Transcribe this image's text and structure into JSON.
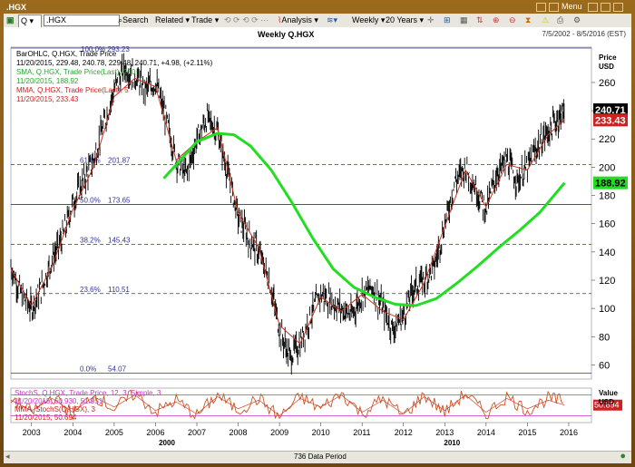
{
  "window": {
    "title": ".HGX",
    "menu_label": "Menu"
  },
  "toolbar": {
    "symbol_type": "Q",
    "symbol_value": ".HGX",
    "search_label": "Search",
    "related_label": "Related",
    "trade_label": "Trade",
    "analysis_label": "Analysis",
    "period_label": "Weekly",
    "range_label": "20 Years"
  },
  "header": {
    "title": "Weekly Q.HGX",
    "date_range": "7/5/2002 - 8/5/2016 (EST)"
  },
  "status": {
    "period_text": "736 Data Period"
  },
  "colors": {
    "price": "#000000",
    "sma": "#22dd22",
    "mma": "#cc3322",
    "stoch": "#cc5522",
    "stoch_mma": "#cc3322",
    "fib_line": "#333399",
    "stoch_bound": "#cc33cc",
    "current_price_bg": "#000000",
    "sma_tag_bg": "#22dd22",
    "mma_tag_bg": "#cc2222"
  },
  "chart_data": [
    {
      "type": "line",
      "subtype": "ohlc_bar",
      "title": "Weekly Q.HGX",
      "legend": [
        {
          "text": "BarOHLC, Q.HGX, Trade Price",
          "color": "#000000"
        },
        {
          "text": "11/20/2015, 229.48, 240.78, 229.48, 240.71, +4.98, (+2.11%)",
          "color": "#000000"
        },
        {
          "text": "SMA, Q.HGX, Trade Price(Last), 200",
          "color": "#22aa22"
        },
        {
          "text": "11/20/2015, 188.92",
          "color": "#22aa22"
        },
        {
          "text": "MMA, Q.HGX, Trade Price(Last), 5",
          "color": "#cc2222"
        },
        {
          "text": "11/20/2015, 233.43",
          "color": "#cc2222"
        }
      ],
      "ylabel": "Price\nUSD",
      "y_axis_title": [
        "Price",
        "USD"
      ],
      "ylim": [
        50,
        285
      ],
      "yticks": [
        "260",
        "240",
        "220",
        "200",
        "180",
        "160",
        "140",
        "120",
        "100",
        "80",
        "60"
      ],
      "x_tick_labels": [
        "2003",
        "2004",
        "2005",
        "2006",
        "2007",
        "2008",
        "2009",
        "2010",
        "2011",
        "2012",
        "2013",
        "2014",
        "2015",
        "2016"
      ],
      "x_decade_labels": [
        "2000",
        "2010"
      ],
      "fib_levels": [
        {
          "label": "61.8%",
          "value": 201.87,
          "text": "201.87"
        },
        {
          "label": "50.0%",
          "value": 173.65,
          "text": "173.65"
        },
        {
          "label": "38.2%",
          "value": 145.43,
          "text": "145.43"
        },
        {
          "label": "23.6%",
          "value": 110.51,
          "text": "110.51"
        },
        {
          "label": "0.0%",
          "value": 54.07,
          "text": "54.07"
        }
      ],
      "fib_top_text": "100.0%  293.23",
      "price_tags": [
        {
          "text": "240.71",
          "value": 240.71
        },
        {
          "text": "233.43",
          "value": 233.43
        },
        {
          "text": "188.92",
          "value": 188.92
        }
      ],
      "series": [
        {
          "name": "BarOHLC, Q.HGX, Trade Price",
          "x": [
            2002.5,
            2002.75,
            2003.0,
            2003.25,
            2003.5,
            2003.75,
            2004.0,
            2004.25,
            2004.5,
            2004.75,
            2005.0,
            2005.25,
            2005.5,
            2005.75,
            2006.0,
            2006.25,
            2006.5,
            2006.75,
            2007.0,
            2007.25,
            2007.5,
            2007.75,
            2008.0,
            2008.25,
            2008.5,
            2008.75,
            2009.0,
            2009.25,
            2009.5,
            2009.75,
            2010.0,
            2010.25,
            2010.5,
            2010.75,
            2011.0,
            2011.25,
            2011.5,
            2011.75,
            2012.0,
            2012.25,
            2012.5,
            2012.75,
            2013.0,
            2013.25,
            2013.5,
            2013.75,
            2014.0,
            2014.25,
            2014.5,
            2014.75,
            2015.0,
            2015.25,
            2015.5,
            2015.75,
            2015.9
          ],
          "values": [
            130,
            110,
            100,
            115,
            135,
            150,
            175,
            190,
            205,
            230,
            255,
            270,
            265,
            255,
            260,
            235,
            205,
            195,
            220,
            235,
            225,
            195,
            165,
            150,
            140,
            120,
            85,
            65,
            75,
            95,
            110,
            105,
            100,
            95,
            110,
            115,
            100,
            85,
            95,
            115,
            120,
            130,
            160,
            190,
            200,
            185,
            170,
            195,
            205,
            190,
            200,
            215,
            225,
            235,
            240.71
          ]
        },
        {
          "name": "SMA, Q.HGX, Trade Price(Last), 200",
          "x": [
            2006.2,
            2006.6,
            2007.0,
            2007.5,
            2007.9,
            2008.3,
            2008.8,
            2009.3,
            2009.8,
            2010.3,
            2010.8,
            2011.3,
            2011.8,
            2012.3,
            2012.8,
            2013.3,
            2013.8,
            2014.3,
            2014.8,
            2015.3,
            2015.9
          ],
          "values": [
            192,
            205,
            218,
            224,
            223,
            215,
            198,
            175,
            150,
            128,
            115,
            108,
            103,
            102,
            107,
            118,
            130,
            143,
            155,
            168,
            188.92
          ]
        },
        {
          "name": "MMA, Q.HGX, Trade Price(Last), 5",
          "x": [
            2002.5,
            2003.0,
            2003.5,
            2004.0,
            2004.5,
            2005.0,
            2005.5,
            2006.0,
            2006.5,
            2007.0,
            2007.5,
            2008.0,
            2008.5,
            2009.0,
            2009.5,
            2010.0,
            2010.5,
            2011.0,
            2011.5,
            2012.0,
            2012.5,
            2013.0,
            2013.5,
            2014.0,
            2014.5,
            2015.0,
            2015.5,
            2015.9
          ],
          "values": [
            128,
            102,
            130,
            170,
            200,
            250,
            263,
            257,
            205,
            218,
            228,
            168,
            143,
            88,
            75,
            108,
            98,
            110,
            98,
            92,
            118,
            158,
            198,
            172,
            202,
            198,
            223,
            233.43
          ]
        }
      ]
    },
    {
      "type": "line",
      "subtype": "stochastic",
      "legend": [
        {
          "text": "StochS, Q.HGX, Trade Price, 12, 3, Simple, 3",
          "color": "#cc33cc"
        },
        {
          "text": "11/20/2015, 60.930, 51.951",
          "color": "#cc33cc"
        },
        {
          "text": "MMA, StochS(Q.HGX), 3",
          "color": "#cc2222"
        },
        {
          "text": "11/20/2015, 50.694",
          "color": "#cc2222"
        }
      ],
      "y_axis_title": [
        "Value",
        "USD"
      ],
      "ylim": [
        0,
        100
      ],
      "bounds": [
        80,
        20
      ],
      "value_tag": {
        "text": "50.694",
        "value": 50.694
      },
      "series": [
        {
          "name": "StochS",
          "x": [
            2002.5,
            2003.0,
            2003.5,
            2004.0,
            2004.5,
            2005.0,
            2005.5,
            2006.0,
            2006.5,
            2007.0,
            2007.5,
            2008.0,
            2008.5,
            2009.0,
            2009.5,
            2010.0,
            2010.5,
            2011.0,
            2011.5,
            2012.0,
            2012.5,
            2013.0,
            2013.5,
            2014.0,
            2014.5,
            2015.0,
            2015.5,
            2015.9
          ],
          "values": [
            70,
            30,
            75,
            25,
            80,
            40,
            85,
            30,
            65,
            20,
            80,
            35,
            70,
            15,
            75,
            40,
            85,
            25,
            70,
            20,
            80,
            30,
            85,
            25,
            75,
            35,
            70,
            60.93
          ]
        },
        {
          "name": "MMA, StochS(Q.HGX), 3",
          "x": [
            2002.5,
            2003.0,
            2003.5,
            2004.0,
            2004.5,
            2005.0,
            2005.5,
            2006.0,
            2006.5,
            2007.0,
            2007.5,
            2008.0,
            2008.5,
            2009.0,
            2009.5,
            2010.0,
            2010.5,
            2011.0,
            2011.5,
            2012.0,
            2012.5,
            2013.0,
            2013.5,
            2014.0,
            2014.5,
            2015.0,
            2015.5,
            2015.9
          ],
          "values": [
            65,
            35,
            70,
            30,
            75,
            45,
            80,
            35,
            60,
            25,
            75,
            40,
            65,
            20,
            70,
            45,
            80,
            30,
            65,
            25,
            75,
            35,
            80,
            30,
            70,
            40,
            65,
            50.694
          ]
        }
      ]
    }
  ]
}
